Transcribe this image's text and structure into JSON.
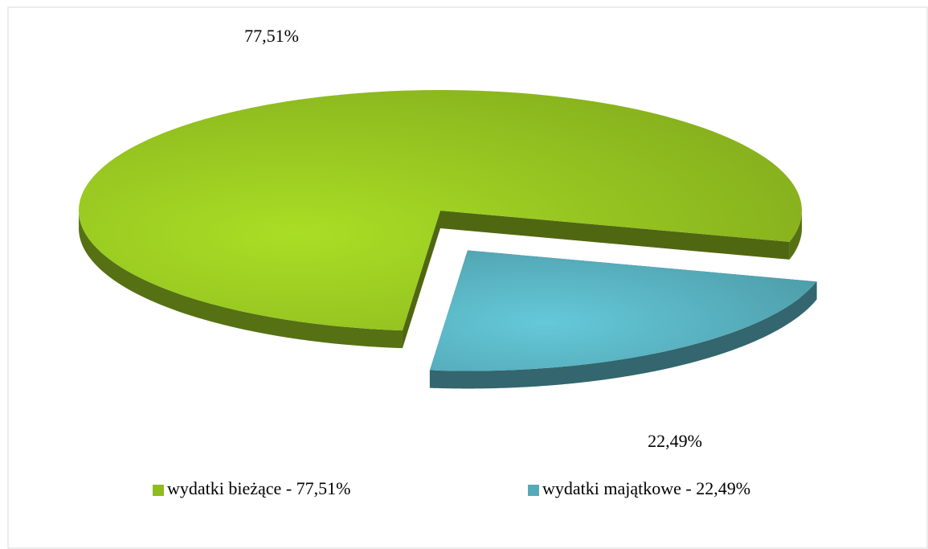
{
  "chart_data": {
    "type": "pie",
    "categories": [
      "wydatki bieżące - 77,51%",
      "wydatki majątkowe - 22,49%"
    ],
    "values": [
      77.51,
      22.49
    ],
    "value_labels": [
      "77,51%",
      "22,49%"
    ],
    "colors": [
      "#8fbc1f",
      "#55aab8"
    ],
    "legend": "bottom"
  }
}
